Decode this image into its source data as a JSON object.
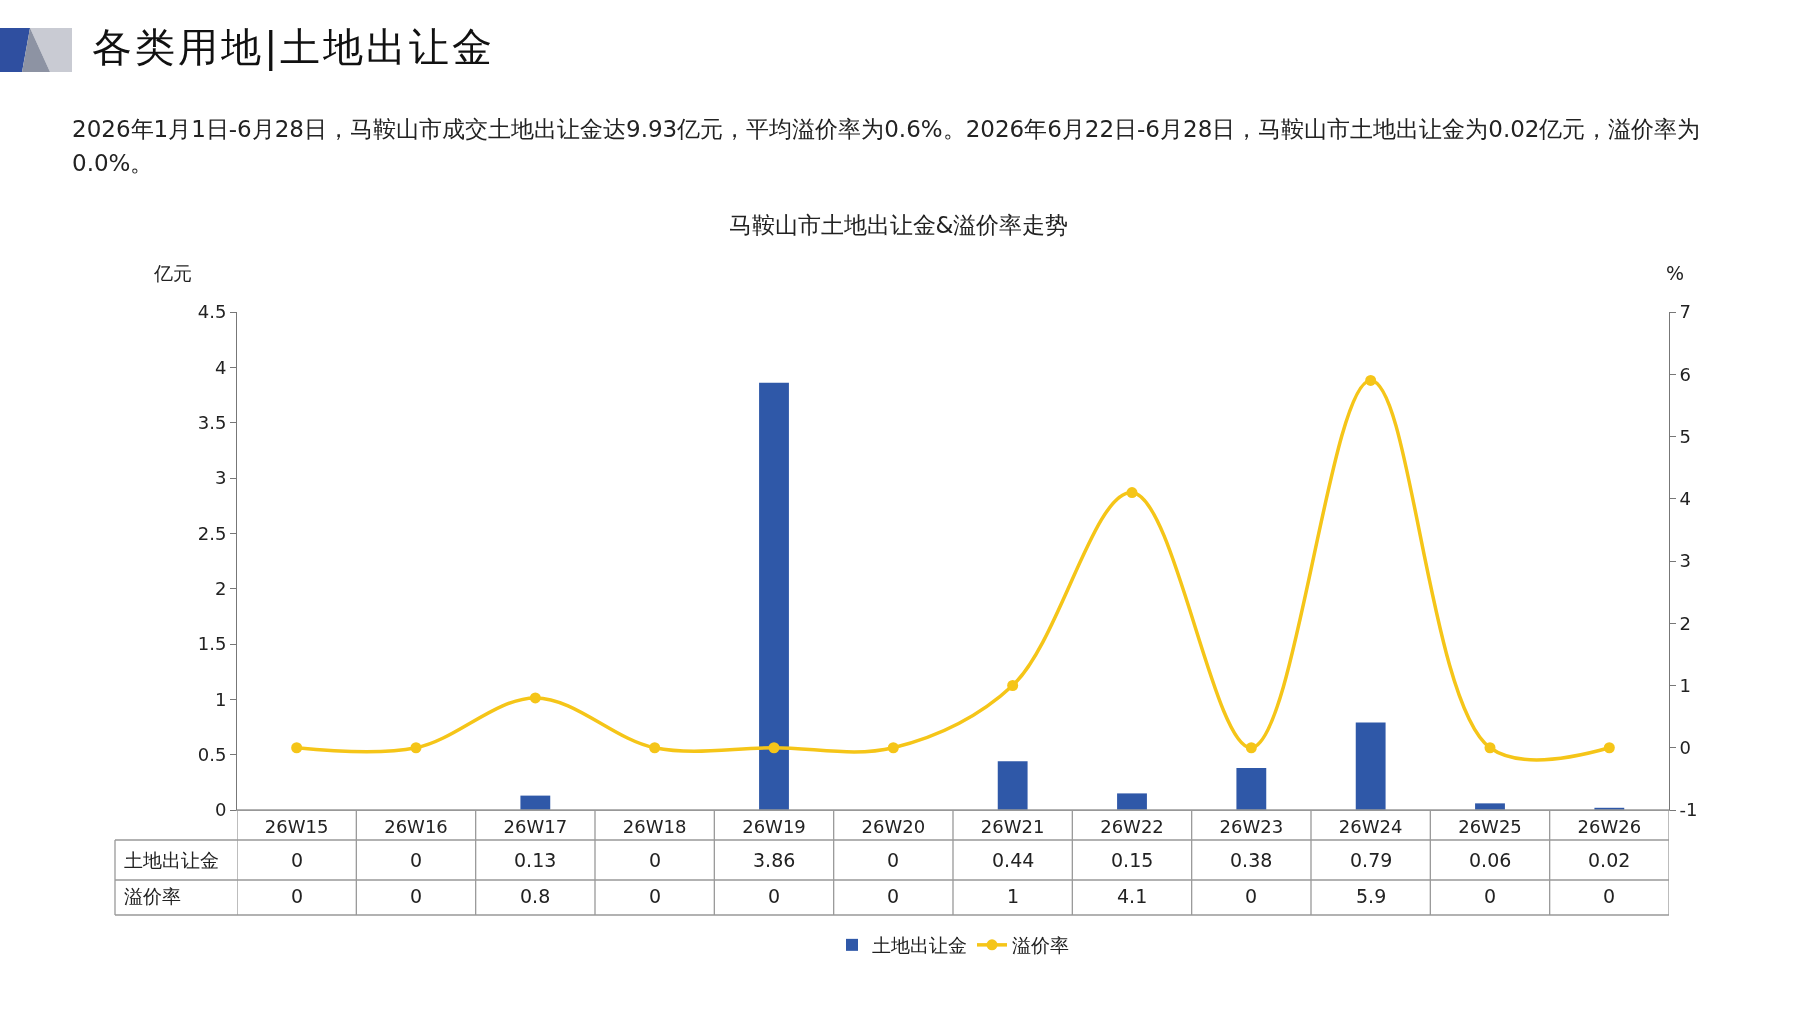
{
  "chart_data": {
    "type": "bar",
    "title": "马鞍山市土地出让金&溢价率走势",
    "subtitle": "2026年1月1日-6月28日，马鞍山市成交土地出让金达9.93亿元，平均溢价率为0.6%。2026年6月22日-6月28日，马鞍山市土地出让金为0.02亿元，溢价率为0.0%。",
    "annotations": [
      "各类用地|土地出让金"
    ],
    "ylabel": "亿元",
    "y2label": "%",
    "categories": [
      "26W15",
      "26W16",
      "26W17",
      "26W18",
      "26W19",
      "26W20",
      "26W21",
      "26W22",
      "26W23",
      "26W24",
      "26W25",
      "26W26"
    ],
    "series": [
      {
        "name": "土地出让金",
        "color": "#2f58a8",
        "values": [
          0,
          0,
          0.13,
          0,
          3.86,
          0,
          0.44,
          0.15,
          0.38,
          0.79,
          0.06,
          0.02
        ]
      },
      {
        "name": "溢价率",
        "type": "line",
        "axis": "y2",
        "color": "#f5c518",
        "marker": "circle",
        "values": [
          0,
          0,
          0.8,
          0,
          0,
          0,
          1,
          4.1,
          0,
          5.9,
          0,
          0
        ]
      }
    ],
    "ylim": [
      0,
      4.5
    ],
    "yticks": [
      0,
      0.5,
      1,
      1.5,
      2,
      2.5,
      3,
      3.5,
      4,
      4.5
    ],
    "y2lim": [
      -1,
      7
    ],
    "y2ticks": [
      -1,
      0,
      1,
      2,
      3,
      4,
      5,
      6,
      7
    ],
    "data_labels": true,
    "grid": false,
    "legend": "bottom"
  }
}
